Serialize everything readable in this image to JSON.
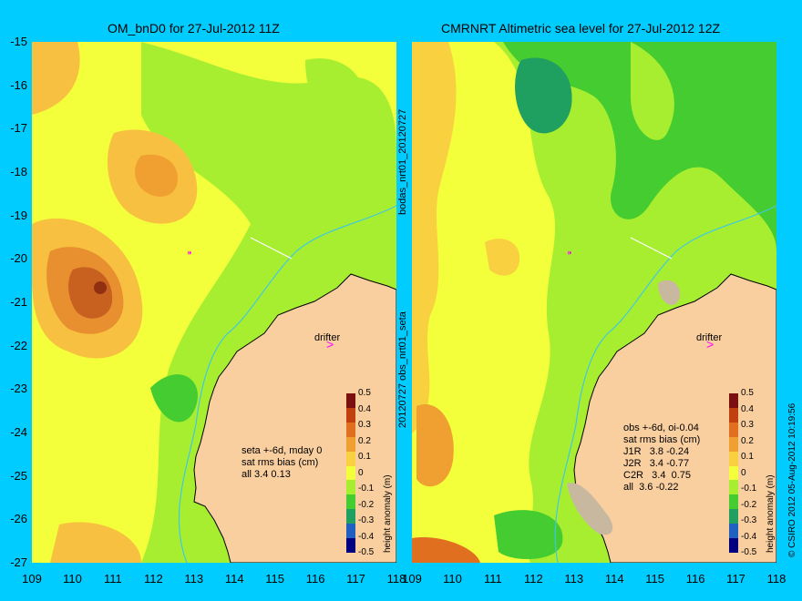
{
  "left_panel": {
    "title": "OM_bnD0 for 27-Jul-2012 11Z",
    "note_lines": [
      "seta +-6d, mday 0",
      "sat rms bias (cm)",
      "all 3.4 0.13"
    ],
    "drifter_label": "drifter",
    "side_label_top": "bodas_nrt01_20120727",
    "side_label_bottom": "20120727 obs_nrt01_seta"
  },
  "right_panel": {
    "title": "CMRNRT Altimetric sea level  for 27-Jul-2012 12Z",
    "note_lines": [
      "obs +-6d, oi-0.04",
      "sat rms bias (cm)",
      "J1R   3.8 -0.24",
      "J2R   3.4 -0.77",
      "C2R   3.4  0.75",
      "all  3.6 -0.22"
    ],
    "drifter_label": "drifter",
    "side_label": "© CSIRO 2012   05-Aug-2012 10:19:56"
  },
  "y_ticks": [
    "-15",
    "-16",
    "-17",
    "-18",
    "-19",
    "-20",
    "-21",
    "-22",
    "-23",
    "-24",
    "-25",
    "-26",
    "-27"
  ],
  "left_x_ticks": [
    "109",
    "110",
    "111",
    "112",
    "113",
    "114",
    "115",
    "116",
    "117",
    "118"
  ],
  "right_x_ticks": [
    "109",
    "110",
    "111",
    "112",
    "113",
    "114",
    "115",
    "116",
    "117",
    "118"
  ],
  "colorbar": {
    "ticks": [
      "0.5",
      "0.4",
      "0.3",
      "0.2",
      "0.1",
      "0",
      "-0.1",
      "-0.2",
      "-0.3",
      "-0.4",
      "-0.5"
    ],
    "label": "height anomaly (m)",
    "colors": [
      "#7a1010",
      "#c04010",
      "#e07020",
      "#f0a030",
      "#f8d040",
      "#f2ff3a",
      "#a8ee30",
      "#44cc30",
      "#20a060",
      "#2060c0",
      "#000080"
    ]
  },
  "colors": {
    "background": "#00ccff",
    "land": "#f9cfa0",
    "shelf_grey": "#c8b8a0",
    "ocean_base": "#f2ff3a",
    "green": "#a8ee30",
    "dark_green": "#44cc30",
    "orange": "#f8c040",
    "dark_orange": "#e89030",
    "red": "#b04020",
    "coastline": "#000000",
    "isobath": "#40c8e0",
    "drifter": "#ff00ff"
  }
}
